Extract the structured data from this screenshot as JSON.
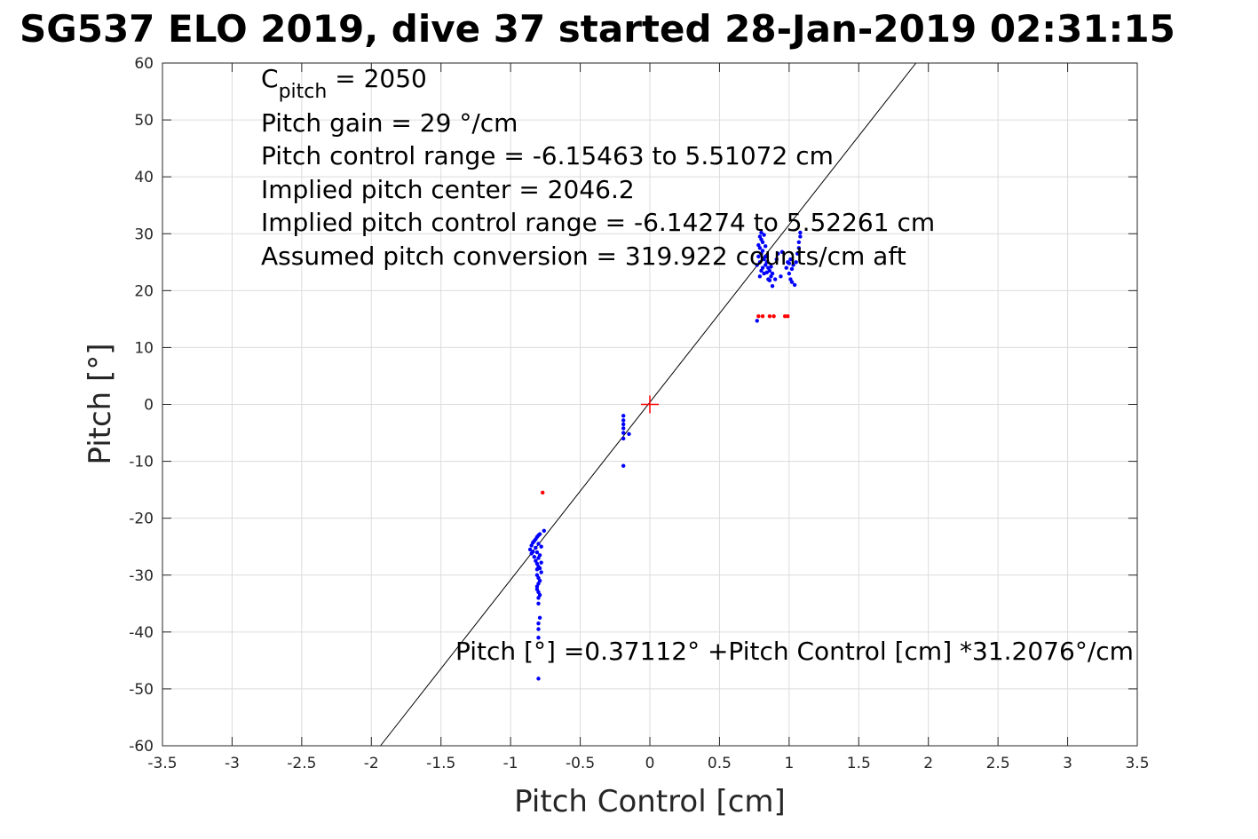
{
  "chart_data": {
    "type": "scatter",
    "title": "SG537 ELO 2019, dive 37 started 28-Jan-2019 02:31:15",
    "xlabel": "Pitch Control [cm]",
    "ylabel": "Pitch [°]",
    "xlim": [
      -3.5,
      3.5
    ],
    "ylim": [
      -60,
      60
    ],
    "xticks": [
      -3.5,
      -3,
      -2.5,
      -2,
      -1.5,
      -1,
      -0.5,
      0,
      0.5,
      1,
      1.5,
      2,
      2.5,
      3,
      3.5
    ],
    "xtick_labels": [
      "-3.5",
      "-3",
      "-2.5",
      "-2",
      "-1.5",
      "-1",
      "-0.5",
      "0",
      "0.5",
      "1",
      "1.5",
      "2",
      "2.5",
      "3",
      "3.5"
    ],
    "yticks": [
      60,
      50,
      40,
      30,
      20,
      10,
      0,
      -10,
      -20,
      -30,
      -40,
      -50,
      -60
    ],
    "ytick_labels": [
      "60",
      "50",
      "40",
      "30",
      "20",
      "10",
      "0",
      "-10",
      "-20",
      "-30",
      "-40",
      "-50",
      "-60"
    ],
    "grid": true,
    "fit_line": {
      "intercept": 0.37112,
      "slope": 31.2076
    },
    "center_marker": {
      "x": 0,
      "y": 0,
      "color": "#ff0000"
    },
    "series": [
      {
        "color": "#0000ff",
        "points": [
          [
            -0.86,
            -25.5
          ],
          [
            -0.85,
            -26.2
          ],
          [
            -0.85,
            -24.8
          ],
          [
            -0.84,
            -25.9
          ],
          [
            -0.84,
            -24.3
          ],
          [
            -0.83,
            -26.8
          ],
          [
            -0.83,
            -24.0
          ],
          [
            -0.82,
            -23.7
          ],
          [
            -0.82,
            -25.2
          ],
          [
            -0.82,
            -27.5
          ],
          [
            -0.81,
            -23.3
          ],
          [
            -0.81,
            -26.0
          ],
          [
            -0.81,
            -28.0
          ],
          [
            -0.81,
            -29.0
          ],
          [
            -0.81,
            -30.0
          ],
          [
            -0.81,
            -32.0
          ],
          [
            -0.81,
            -32.5
          ],
          [
            -0.8,
            -23.0
          ],
          [
            -0.8,
            -24.5
          ],
          [
            -0.8,
            -27.0
          ],
          [
            -0.8,
            -28.5
          ],
          [
            -0.8,
            -30.5
          ],
          [
            -0.8,
            -31.5
          ],
          [
            -0.8,
            -33.0
          ],
          [
            -0.8,
            -34.0
          ],
          [
            -0.8,
            -35.0
          ],
          [
            -0.8,
            -38.5
          ],
          [
            -0.8,
            -39.5
          ],
          [
            -0.8,
            -41.0
          ],
          [
            -0.8,
            -48.2
          ],
          [
            -0.79,
            -22.8
          ],
          [
            -0.79,
            -26.5
          ],
          [
            -0.79,
            -28.8
          ],
          [
            -0.79,
            -31.0
          ],
          [
            -0.79,
            -33.5
          ],
          [
            -0.79,
            -37.5
          ],
          [
            -0.78,
            -25.0
          ],
          [
            -0.78,
            -27.8
          ],
          [
            -0.78,
            -29.5
          ],
          [
            -0.76,
            -22.2
          ],
          [
            -0.19,
            -2.0
          ],
          [
            -0.19,
            -2.8
          ],
          [
            -0.19,
            -3.5
          ],
          [
            -0.19,
            -4.2
          ],
          [
            -0.19,
            -5.0
          ],
          [
            -0.19,
            -6.0
          ],
          [
            -0.19,
            -10.8
          ],
          [
            -0.15,
            -5.2
          ],
          [
            0.77,
            14.7
          ],
          [
            0.77,
            24.5
          ],
          [
            0.78,
            26.0
          ],
          [
            0.78,
            28.0
          ],
          [
            0.79,
            22.5
          ],
          [
            0.79,
            25.0
          ],
          [
            0.79,
            27.5
          ],
          [
            0.79,
            29.5
          ],
          [
            0.8,
            23.5
          ],
          [
            0.8,
            26.5
          ],
          [
            0.8,
            29.0
          ],
          [
            0.8,
            30.2
          ],
          [
            0.81,
            24.0
          ],
          [
            0.81,
            27.0
          ],
          [
            0.81,
            28.5
          ],
          [
            0.82,
            25.5
          ],
          [
            0.82,
            29.8
          ],
          [
            0.82,
            23.0
          ],
          [
            0.83,
            24.5
          ],
          [
            0.83,
            26.0
          ],
          [
            0.83,
            27.8
          ],
          [
            0.84,
            23.2
          ],
          [
            0.84,
            25.0
          ],
          [
            0.85,
            22.0
          ],
          [
            0.85,
            24.0
          ],
          [
            0.86,
            21.8
          ],
          [
            0.86,
            23.5
          ],
          [
            0.87,
            22.5
          ],
          [
            0.87,
            24.2
          ],
          [
            0.88,
            20.8
          ],
          [
            0.88,
            23.0
          ],
          [
            0.9,
            22.0
          ],
          [
            0.91,
            25.5
          ],
          [
            0.92,
            26.5
          ],
          [
            0.94,
            22.5
          ],
          [
            0.95,
            26.8
          ],
          [
            0.98,
            24.0
          ],
          [
            0.99,
            25.0
          ],
          [
            1.0,
            23.0
          ],
          [
            1.0,
            24.8
          ],
          [
            1.01,
            22.0
          ],
          [
            1.01,
            25.5
          ],
          [
            1.02,
            21.5
          ],
          [
            1.02,
            23.8
          ],
          [
            1.03,
            24.5
          ],
          [
            1.04,
            21.0
          ],
          [
            1.05,
            25.0
          ],
          [
            1.06,
            26.5
          ],
          [
            1.07,
            27.5
          ],
          [
            1.07,
            28.5
          ],
          [
            1.08,
            29.5
          ],
          [
            1.08,
            30.2
          ]
        ]
      },
      {
        "color": "#ff0000",
        "points": [
          [
            -0.77,
            -15.5
          ],
          [
            0.78,
            15.5
          ],
          [
            0.81,
            15.5
          ],
          [
            0.86,
            15.5
          ],
          [
            0.89,
            15.5
          ],
          [
            0.97,
            15.5
          ],
          [
            0.99,
            15.5
          ]
        ]
      }
    ],
    "annotations": {
      "cpitch_main": "C",
      "cpitch_sub": "pitch",
      "cpitch_rest": " = 2050",
      "pitch_gain": "Pitch gain = 29 °/cm",
      "control_range": "Pitch control range = -6.15463 to 5.51072 cm",
      "implied_center": "Implied pitch center = 2046.2",
      "implied_range": "Implied pitch control range = -6.14274 to 5.52261 cm",
      "assumed_conversion": "Assumed pitch conversion = 319.922 counts/cm aft",
      "fit_equation": "Pitch [°] =0.37112° +Pitch Control [cm] *31.2076°/cm"
    }
  }
}
